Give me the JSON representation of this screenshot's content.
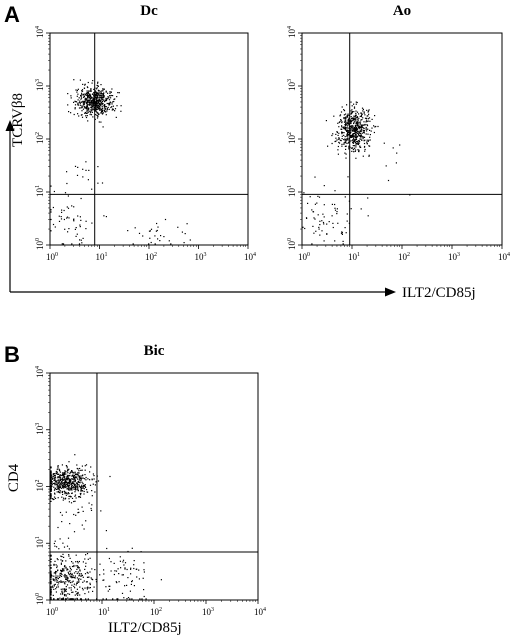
{
  "panels": [
    {
      "letter": "A"
    },
    {
      "letter": "B"
    }
  ],
  "axis_labels": {
    "a_y": "TCRVβ8",
    "a_x": "ILT2/CD85j",
    "b_y": "CD4",
    "b_x": "ILT2/CD85j"
  },
  "chart_data": [
    {
      "type": "scatter",
      "title": "Dc",
      "xscale": "log",
      "yscale": "log",
      "xlim": [
        1,
        10000
      ],
      "ylim": [
        1,
        10000
      ],
      "tick_labels": [
        "10^0",
        "10^1",
        "10^2",
        "10^3",
        "10^4"
      ],
      "quadrant_gate": {
        "x": 8,
        "y": 9
      },
      "clusters": [
        {
          "center": [
            8,
            500
          ],
          "spread_decades": [
            0.18,
            0.13
          ],
          "count": 560
        },
        {
          "center": [
            2.5,
            3
          ],
          "spread_decades": [
            0.3,
            0.3
          ],
          "count": 55
        },
        {
          "center": [
            150,
            1.6
          ],
          "spread_decades": [
            0.4,
            0.15
          ],
          "count": 30
        },
        {
          "center": [
            6,
            20
          ],
          "spread_decades": [
            0.25,
            0.3
          ],
          "count": 15
        }
      ]
    },
    {
      "type": "scatter",
      "title": "Ao",
      "xscale": "log",
      "yscale": "log",
      "xlim": [
        1,
        10000
      ],
      "ylim": [
        1,
        10000
      ],
      "tick_labels": [
        "10^0",
        "10^1",
        "10^2",
        "10^3",
        "10^4"
      ],
      "quadrant_gate": {
        "x": 9,
        "y": 9
      },
      "clusters": [
        {
          "center": [
            11,
            150
          ],
          "spread_decades": [
            0.16,
            0.2
          ],
          "count": 560
        },
        {
          "center": [
            3,
            3.5
          ],
          "spread_decades": [
            0.28,
            0.28
          ],
          "count": 70
        },
        {
          "center": [
            50,
            30
          ],
          "spread_decades": [
            0.35,
            0.4
          ],
          "count": 10
        }
      ]
    },
    {
      "type": "scatter",
      "title": "Bic",
      "xscale": "log",
      "yscale": "log",
      "xlim": [
        1,
        10000
      ],
      "ylim": [
        1,
        10000
      ],
      "tick_labels": [
        "10^0",
        "10^1",
        "10^2",
        "10^3",
        "10^4"
      ],
      "quadrant_gate": {
        "x": 8,
        "y": 7
      },
      "clusters": [
        {
          "center": [
            2,
            120
          ],
          "spread_decades": [
            0.25,
            0.14
          ],
          "count": 560
        },
        {
          "center": [
            2,
            2.5
          ],
          "spread_decades": [
            0.25,
            0.25
          ],
          "count": 360
        },
        {
          "center": [
            25,
            2.5
          ],
          "spread_decades": [
            0.3,
            0.25
          ],
          "count": 80
        },
        {
          "center": [
            3,
            25
          ],
          "spread_decades": [
            0.3,
            0.3
          ],
          "count": 25
        }
      ]
    }
  ]
}
